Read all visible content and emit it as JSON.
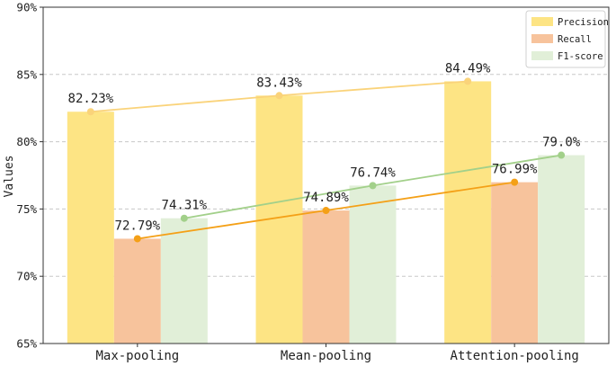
{
  "chart_data": {
    "type": "bar",
    "ylabel": "Values",
    "xlabel": "",
    "title": "",
    "ylim": [
      65,
      90
    ],
    "yticks": [
      65,
      70,
      75,
      80,
      85,
      90
    ],
    "ytick_suffix": "%",
    "categories": [
      "Max-pooling",
      "Mean-pooling",
      "Attention-pooling"
    ],
    "grid": "horizontal dashed",
    "legend_position": "top-right",
    "series": [
      {
        "name": "Precision",
        "values": [
          82.23,
          83.43,
          84.49
        ],
        "labels": [
          "82.23%",
          "83.43%",
          "84.49%"
        ],
        "bar_color": "#fde484",
        "line_color": "#fad37a"
      },
      {
        "name": "Recall",
        "values": [
          72.79,
          74.89,
          76.99
        ],
        "labels": [
          "72.79%",
          "74.89%",
          "76.99%"
        ],
        "bar_color": "#f7c39c",
        "line_color": "#f4a017"
      },
      {
        "name": "F1-score",
        "values": [
          74.31,
          76.74,
          79.0
        ],
        "labels": [
          "74.31%",
          "76.74%",
          "79.0%"
        ],
        "bar_color": "#e1efd8",
        "line_color": "#a2d08a"
      }
    ]
  }
}
